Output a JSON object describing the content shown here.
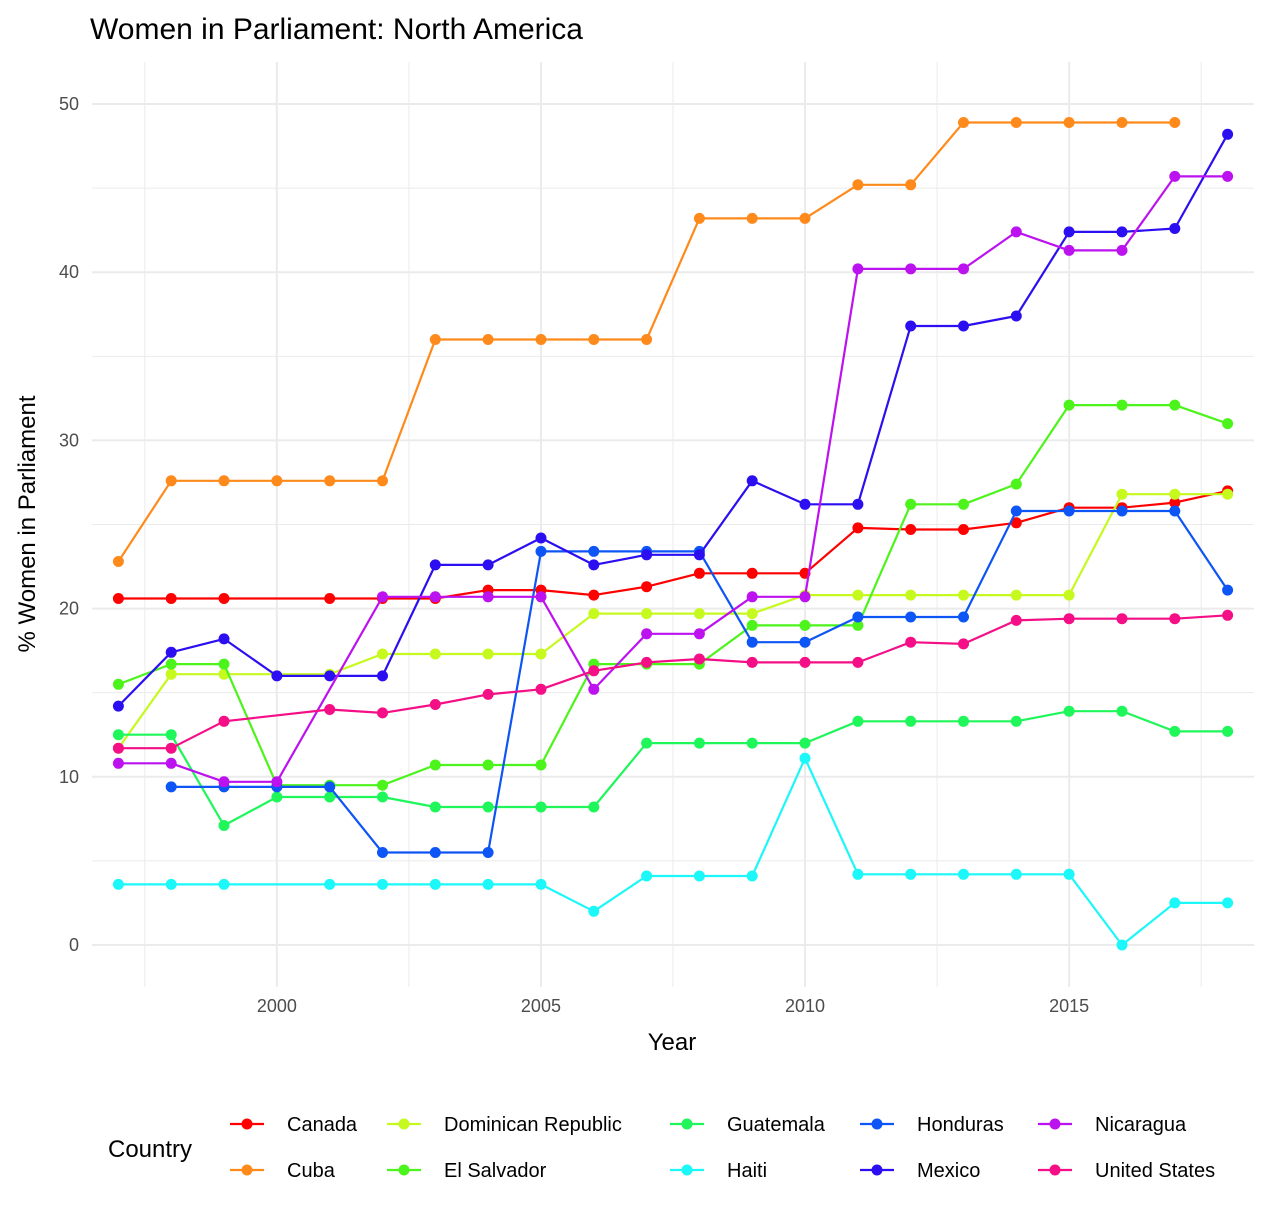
{
  "chart_data": {
    "type": "line",
    "title": "Women in Parliament: North America",
    "xlabel": "Year",
    "ylabel": "% Women in Parliament",
    "xlim": [
      1996.5,
      2018.5
    ],
    "ylim": [
      -2.5,
      52.5
    ],
    "x_ticks": [
      2000,
      2005,
      2010,
      2015
    ],
    "y_ticks": [
      0,
      10,
      20,
      30,
      40,
      50
    ],
    "legend_title": "Country",
    "legend_position": "bottom",
    "grid": true,
    "series": [
      {
        "name": "Canada",
        "color": "#ff0000",
        "points": [
          [
            1997,
            20.6
          ],
          [
            1998,
            20.6
          ],
          [
            1999,
            20.6
          ],
          [
            2001,
            20.6
          ],
          [
            2002,
            20.6
          ],
          [
            2003,
            20.6
          ],
          [
            2004,
            21.1
          ],
          [
            2005,
            21.1
          ],
          [
            2006,
            20.8
          ],
          [
            2007,
            21.3
          ],
          [
            2008,
            22.1
          ],
          [
            2009,
            22.1
          ],
          [
            2010,
            22.1
          ],
          [
            2011,
            24.8
          ],
          [
            2012,
            24.7
          ],
          [
            2013,
            24.7
          ],
          [
            2014,
            25.1
          ],
          [
            2015,
            26.0
          ],
          [
            2016,
            26.0
          ],
          [
            2017,
            26.3
          ],
          [
            2018,
            27.0
          ]
        ]
      },
      {
        "name": "Cuba",
        "color": "#ff8a1c",
        "points": [
          [
            1997,
            22.8
          ],
          [
            1998,
            27.6
          ],
          [
            1999,
            27.6
          ],
          [
            2000,
            27.6
          ],
          [
            2001,
            27.6
          ],
          [
            2002,
            27.6
          ],
          [
            2003,
            36.0
          ],
          [
            2004,
            36.0
          ],
          [
            2005,
            36.0
          ],
          [
            2006,
            36.0
          ],
          [
            2007,
            36.0
          ],
          [
            2008,
            43.2
          ],
          [
            2009,
            43.2
          ],
          [
            2010,
            43.2
          ],
          [
            2011,
            45.2
          ],
          [
            2012,
            45.2
          ],
          [
            2013,
            48.9
          ],
          [
            2014,
            48.9
          ],
          [
            2015,
            48.9
          ],
          [
            2016,
            48.9
          ],
          [
            2017,
            48.9
          ]
        ]
      },
      {
        "name": "Dominican Republic",
        "color": "#c6f91e",
        "points": [
          [
            1997,
            11.7
          ],
          [
            1998,
            16.1
          ],
          [
            1999,
            16.1
          ],
          [
            2001,
            16.1
          ],
          [
            2002,
            17.3
          ],
          [
            2003,
            17.3
          ],
          [
            2004,
            17.3
          ],
          [
            2005,
            17.3
          ],
          [
            2006,
            19.7
          ],
          [
            2007,
            19.7
          ],
          [
            2008,
            19.7
          ],
          [
            2009,
            19.7
          ],
          [
            2010,
            20.8
          ],
          [
            2011,
            20.8
          ],
          [
            2012,
            20.8
          ],
          [
            2013,
            20.8
          ],
          [
            2014,
            20.8
          ],
          [
            2015,
            20.8
          ],
          [
            2016,
            26.8
          ],
          [
            2017,
            26.8
          ],
          [
            2018,
            26.8
          ]
        ]
      },
      {
        "name": "El Salvador",
        "color": "#4cf41c",
        "points": [
          [
            1997,
            15.5
          ],
          [
            1998,
            16.7
          ],
          [
            1999,
            16.7
          ],
          [
            2000,
            9.5
          ],
          [
            2001,
            9.5
          ],
          [
            2002,
            9.5
          ],
          [
            2003,
            10.7
          ],
          [
            2004,
            10.7
          ],
          [
            2005,
            10.7
          ],
          [
            2006,
            16.7
          ],
          [
            2007,
            16.7
          ],
          [
            2008,
            16.7
          ],
          [
            2009,
            19.0
          ],
          [
            2010,
            19.0
          ],
          [
            2011,
            19.0
          ],
          [
            2012,
            26.2
          ],
          [
            2013,
            26.2
          ],
          [
            2014,
            27.4
          ],
          [
            2015,
            32.1
          ],
          [
            2016,
            32.1
          ],
          [
            2017,
            32.1
          ],
          [
            2018,
            31.0
          ]
        ]
      },
      {
        "name": "Guatemala",
        "color": "#1ef65a",
        "points": [
          [
            1997,
            12.5
          ],
          [
            1998,
            12.5
          ],
          [
            1999,
            7.1
          ],
          [
            2000,
            8.8
          ],
          [
            2001,
            8.8
          ],
          [
            2002,
            8.8
          ],
          [
            2003,
            8.2
          ],
          [
            2004,
            8.2
          ],
          [
            2005,
            8.2
          ],
          [
            2006,
            8.2
          ],
          [
            2007,
            12.0
          ],
          [
            2008,
            12.0
          ],
          [
            2009,
            12.0
          ],
          [
            2010,
            12.0
          ],
          [
            2011,
            13.3
          ],
          [
            2012,
            13.3
          ],
          [
            2013,
            13.3
          ],
          [
            2014,
            13.3
          ],
          [
            2015,
            13.9
          ],
          [
            2016,
            13.9
          ],
          [
            2017,
            12.7
          ],
          [
            2018,
            12.7
          ]
        ]
      },
      {
        "name": "Haiti",
        "color": "#1cf7f9",
        "points": [
          [
            1997,
            3.6
          ],
          [
            1998,
            3.6
          ],
          [
            1999,
            3.6
          ],
          [
            2001,
            3.6
          ],
          [
            2002,
            3.6
          ],
          [
            2003,
            3.6
          ],
          [
            2004,
            3.6
          ],
          [
            2005,
            3.6
          ],
          [
            2006,
            2.0
          ],
          [
            2007,
            4.1
          ],
          [
            2008,
            4.1
          ],
          [
            2009,
            4.1
          ],
          [
            2010,
            11.1
          ],
          [
            2011,
            4.2
          ],
          [
            2012,
            4.2
          ],
          [
            2013,
            4.2
          ],
          [
            2014,
            4.2
          ],
          [
            2015,
            4.2
          ],
          [
            2016,
            0.0
          ],
          [
            2017,
            2.5
          ],
          [
            2018,
            2.5
          ]
        ]
      },
      {
        "name": "Honduras",
        "color": "#0d55f5",
        "points": [
          [
            1998,
            9.4
          ],
          [
            1999,
            9.4
          ],
          [
            2000,
            9.4
          ],
          [
            2001,
            9.4
          ],
          [
            2002,
            5.5
          ],
          [
            2003,
            5.5
          ],
          [
            2004,
            5.5
          ],
          [
            2005,
            23.4
          ],
          [
            2006,
            23.4
          ],
          [
            2007,
            23.4
          ],
          [
            2008,
            23.4
          ],
          [
            2009,
            18.0
          ],
          [
            2010,
            18.0
          ],
          [
            2011,
            19.5
          ],
          [
            2012,
            19.5
          ],
          [
            2013,
            19.5
          ],
          [
            2014,
            25.8
          ],
          [
            2015,
            25.8
          ],
          [
            2016,
            25.8
          ],
          [
            2017,
            25.8
          ],
          [
            2018,
            21.1
          ]
        ]
      },
      {
        "name": "Mexico",
        "color": "#2c0ff0",
        "points": [
          [
            1997,
            14.2
          ],
          [
            1998,
            17.4
          ],
          [
            1999,
            18.2
          ],
          [
            2000,
            16.0
          ],
          [
            2001,
            16.0
          ],
          [
            2002,
            16.0
          ],
          [
            2003,
            22.6
          ],
          [
            2004,
            22.6
          ],
          [
            2005,
            24.2
          ],
          [
            2006,
            22.6
          ],
          [
            2007,
            23.2
          ],
          [
            2008,
            23.2
          ],
          [
            2009,
            27.6
          ],
          [
            2010,
            26.2
          ],
          [
            2011,
            26.2
          ],
          [
            2012,
            36.8
          ],
          [
            2013,
            36.8
          ],
          [
            2014,
            37.4
          ],
          [
            2015,
            42.4
          ],
          [
            2016,
            42.4
          ],
          [
            2017,
            42.6
          ],
          [
            2018,
            48.2
          ]
        ]
      },
      {
        "name": "Nicaragua",
        "color": "#bc12ef",
        "points": [
          [
            1997,
            10.8
          ],
          [
            1998,
            10.8
          ],
          [
            1999,
            9.7
          ],
          [
            2000,
            9.7
          ],
          [
            2002,
            20.7
          ],
          [
            2003,
            20.7
          ],
          [
            2004,
            20.7
          ],
          [
            2005,
            20.7
          ],
          [
            2006,
            15.2
          ],
          [
            2007,
            18.5
          ],
          [
            2008,
            18.5
          ],
          [
            2009,
            20.7
          ],
          [
            2010,
            20.7
          ],
          [
            2011,
            40.2
          ],
          [
            2012,
            40.2
          ],
          [
            2013,
            40.2
          ],
          [
            2014,
            42.4
          ],
          [
            2015,
            41.3
          ],
          [
            2016,
            41.3
          ],
          [
            2017,
            45.7
          ],
          [
            2018,
            45.7
          ]
        ]
      },
      {
        "name": "United States",
        "color": "#f40f86",
        "points": [
          [
            1997,
            11.7
          ],
          [
            1998,
            11.7
          ],
          [
            1999,
            13.3
          ],
          [
            2001,
            14.0
          ],
          [
            2002,
            13.8
          ],
          [
            2003,
            14.3
          ],
          [
            2004,
            14.9
          ],
          [
            2005,
            15.2
          ],
          [
            2006,
            16.3
          ],
          [
            2007,
            16.8
          ],
          [
            2008,
            17.0
          ],
          [
            2009,
            16.8
          ],
          [
            2010,
            16.8
          ],
          [
            2011,
            16.8
          ],
          [
            2012,
            18.0
          ],
          [
            2013,
            17.9
          ],
          [
            2014,
            19.3
          ],
          [
            2015,
            19.4
          ],
          [
            2016,
            19.4
          ],
          [
            2017,
            19.4
          ],
          [
            2018,
            19.6
          ]
        ]
      }
    ]
  }
}
